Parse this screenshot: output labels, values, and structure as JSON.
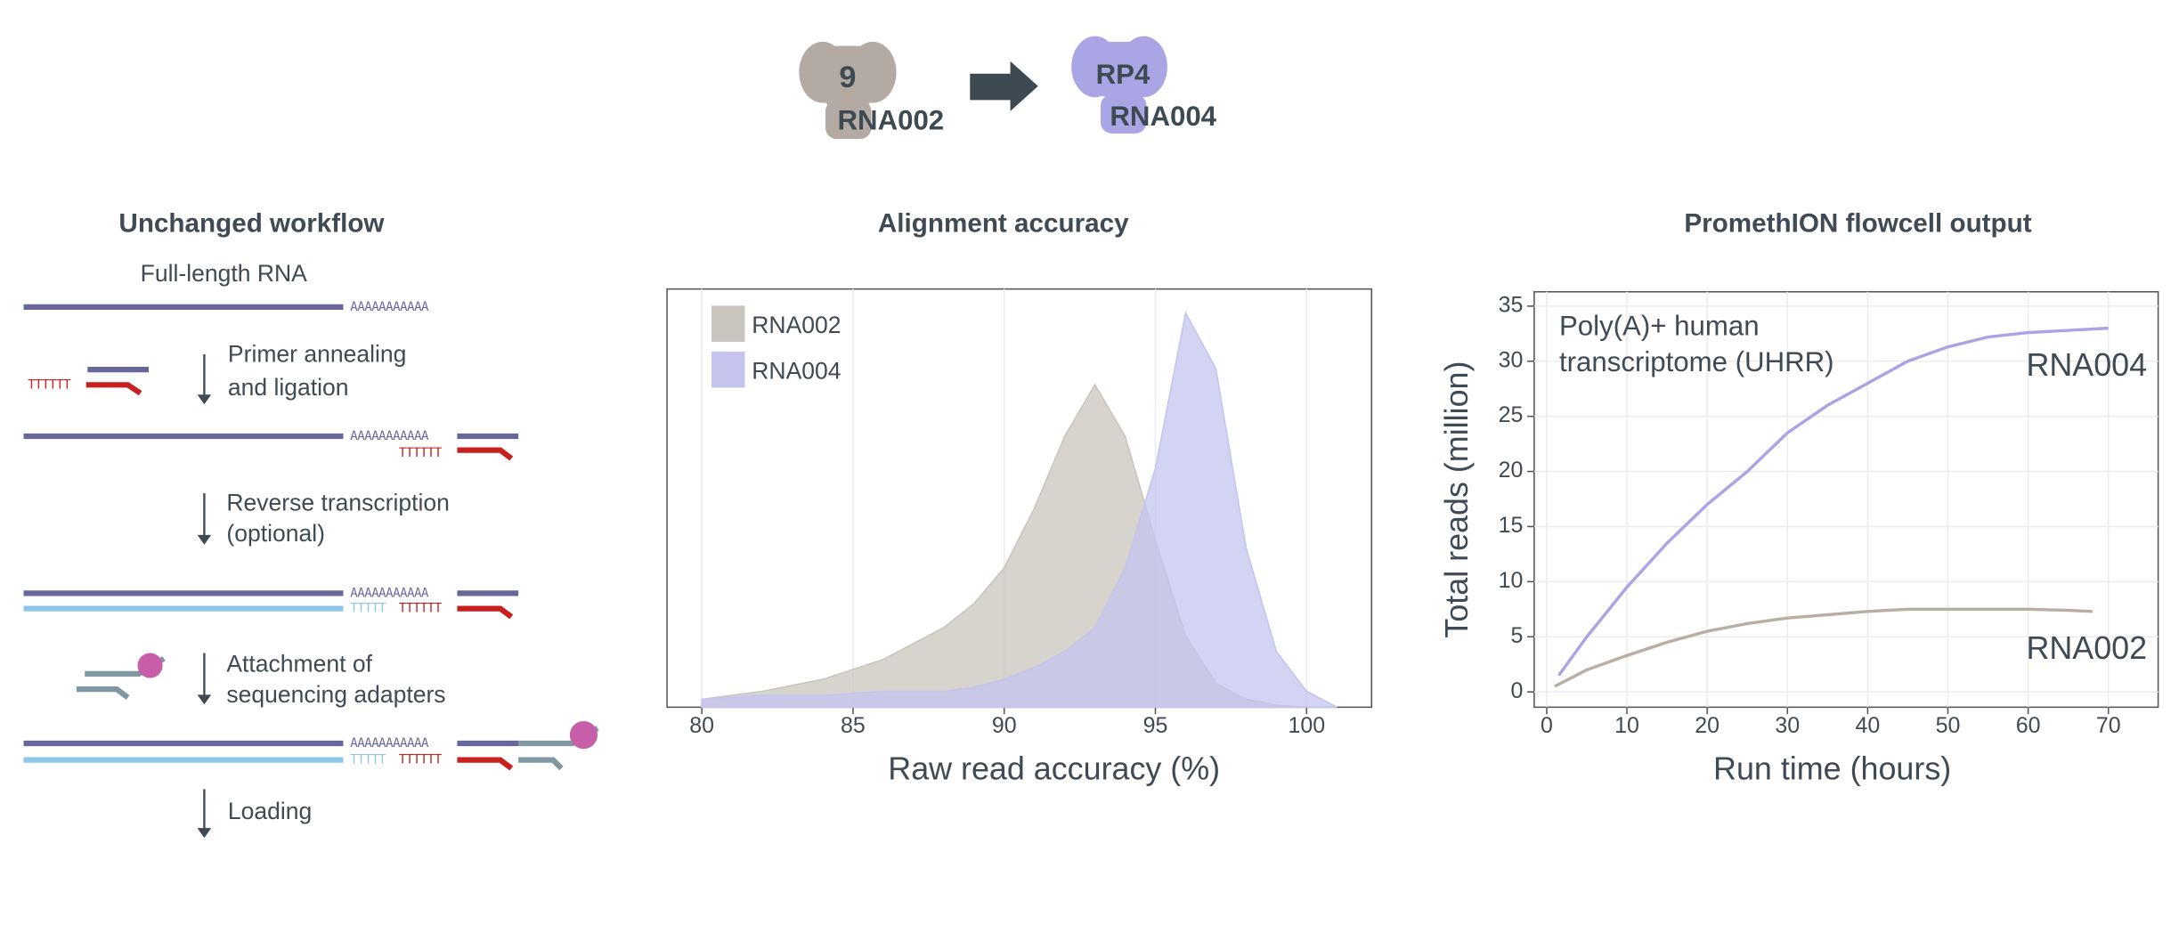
{
  "header": {
    "old_pore": "9",
    "old_chem": "RNA002",
    "new_pore": "RP4",
    "new_chem": "RNA004"
  },
  "workflow": {
    "title": "Unchanged workflow",
    "input": "Full-length RNA",
    "poly_a": "AAAAAAAAAAA",
    "poly_t": "TTTTTT",
    "poly_t_cdna": "TTTTT",
    "steps": [
      [
        "Primer annealing",
        "and ligation"
      ],
      [
        "Reverse transcription",
        "(optional)"
      ],
      [
        "Attachment of",
        "sequencing adapters"
      ],
      [
        "Loading"
      ]
    ]
  },
  "chart_data": [
    {
      "type": "area",
      "title": "Alignment accuracy",
      "x_label": "Raw read accuracy (%)",
      "x": [
        80,
        82,
        84,
        86,
        88,
        89,
        90,
        91,
        92,
        93,
        94,
        95,
        96,
        97,
        98,
        99,
        100,
        101
      ],
      "series": [
        {
          "name": "RNA002",
          "color": "#c9c5be",
          "values": [
            2,
            4,
            7,
            12,
            20,
            26,
            35,
            50,
            68,
            81,
            68,
            42,
            18,
            6,
            2,
            0.5,
            0,
            0
          ]
        },
        {
          "name": "RNA004",
          "color": "#c4c4ef",
          "values": [
            2,
            3,
            3,
            4,
            4,
            5,
            7,
            10,
            14,
            20,
            35,
            60,
            99,
            85,
            40,
            14,
            4,
            0
          ]
        }
      ],
      "xlim": [
        78.85,
        102.15
      ],
      "xticks": [
        80,
        85,
        90,
        95,
        100
      ],
      "ylim": [
        0,
        105
      ],
      "grid": true,
      "legend": "upper left"
    },
    {
      "type": "line",
      "title": "PromethION flowcell output",
      "x_label": "Run time (hours)",
      "y_label": "Total reads (million)",
      "annotation": [
        "Poly(A)+ human",
        "transcriptome (UHRR)"
      ],
      "series": [
        {
          "name": "RNA004",
          "color": "#aba4e4",
          "x": [
            1.5,
            5,
            10,
            15,
            20,
            25,
            30,
            35,
            40,
            45,
            50,
            55,
            60,
            65,
            70
          ],
          "values": [
            1.5,
            5,
            9.5,
            13.5,
            17,
            20,
            23.5,
            26,
            28,
            30,
            31.3,
            32.2,
            32.6,
            32.8,
            33
          ]
        },
        {
          "name": "RNA002",
          "color": "#b9aea3",
          "x": [
            1,
            5,
            10,
            15,
            20,
            25,
            30,
            35,
            40,
            45,
            50,
            55,
            60,
            65,
            68
          ],
          "values": [
            0.5,
            2,
            3.3,
            4.5,
            5.5,
            6.2,
            6.7,
            7,
            7.3,
            7.5,
            7.5,
            7.5,
            7.5,
            7.4,
            7.3
          ]
        }
      ],
      "xlim": [
        -1.56,
        76.2
      ],
      "xticks": [
        0,
        10,
        20,
        30,
        40,
        50,
        60,
        70
      ],
      "ylim": [
        -1.39,
        36.3
      ],
      "yticks": [
        0,
        5,
        10,
        15,
        20,
        25,
        30,
        35
      ],
      "grid": true,
      "legend": "line end"
    }
  ]
}
